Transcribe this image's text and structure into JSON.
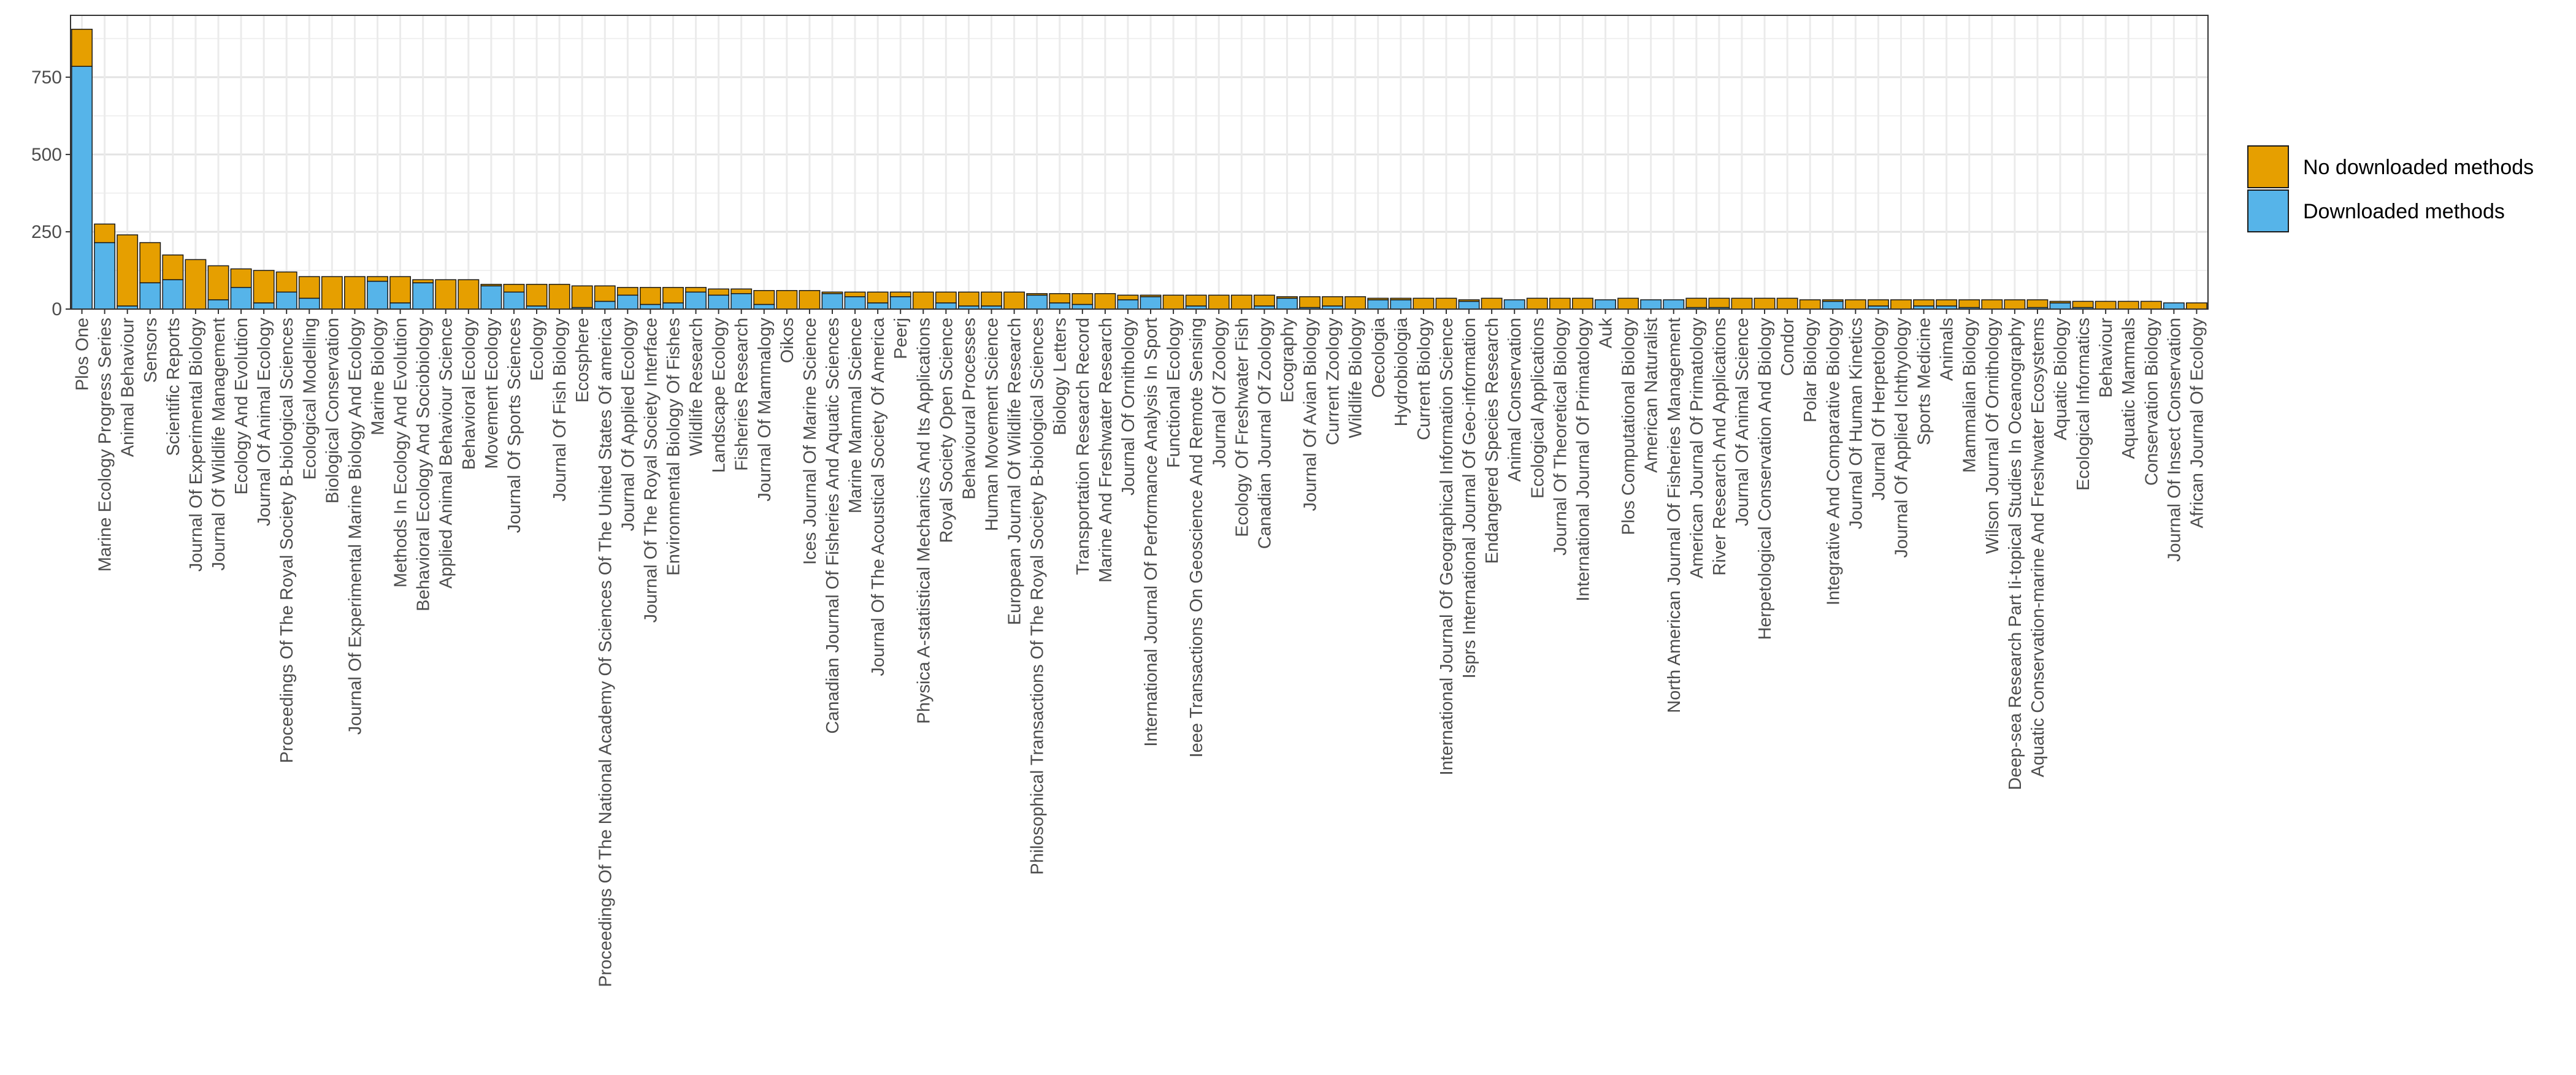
{
  "chart_data": {
    "type": "bar",
    "stacked": true,
    "grid": true,
    "legend_position": "right",
    "ylim": [
      0,
      950
    ],
    "y_ticks": [
      0,
      250,
      500,
      750
    ],
    "title": "",
    "xlabel": "",
    "ylabel": "",
    "categories": [
      "Plos One",
      "Marine Ecology Progress Series",
      "Animal Behaviour",
      "Sensors",
      "Scientific Reports",
      "Journal Of Experimental Biology",
      "Journal Of Wildlife Management",
      "Ecology And Evolution",
      "Journal Of Animal Ecology",
      "Proceedings Of The Royal Society B-biological Sciences",
      "Ecological Modelling",
      "Biological Conservation",
      "Journal Of Experimental Marine Biology And Ecology",
      "Marine Biology",
      "Methods In Ecology And Evolution",
      "Behavioral Ecology And Sociobiology",
      "Applied Animal Behaviour Science",
      "Behavioral Ecology",
      "Movement Ecology",
      "Journal Of Sports Sciences",
      "Ecology",
      "Journal Of Fish Biology",
      "Ecosphere",
      "Proceedings Of The National Academy Of Sciences Of The United States Of america",
      "Journal Of Applied Ecology",
      "Journal Of The Royal Society Interface",
      "Environmental Biology Of Fishes",
      "Wildlife Research",
      "Landscape Ecology",
      "Fisheries Research",
      "Journal Of Mammalogy",
      "Oikos",
      "Ices Journal Of Marine Science",
      "Canadian Journal Of Fisheries And Aquatic Sciences",
      "Marine Mammal Science",
      "Journal Of The Acoustical Society Of America",
      "Peerj",
      "Physica A-statistical Mechanics And Its Applications",
      "Royal Society Open Science",
      "Behavioural Processes",
      "Human Movement Science",
      "European Journal Of Wildlife Research",
      "Philosophical Transactions Of The Royal Society B-biological Sciences",
      "Biology Letters",
      "Transportation Research Record",
      "Marine And Freshwater Research",
      "Journal Of Ornithology",
      "International Journal Of Performance Analysis In Sport",
      "Functional Ecology",
      "Ieee Transactions On Geoscience And Remote Sensing",
      "Journal Of Zoology",
      "Ecology Of Freshwater Fish",
      "Canadian Journal Of Zoology",
      "Ecography",
      "Journal Of Avian Biology",
      "Current Zoology",
      "Wildlife Biology",
      "Oecologia",
      "Hydrobiologia",
      "Current Biology",
      "International Journal Of Geographical Information Science",
      "Isprs International Journal Of Geo-information",
      "Endangered Species Research",
      "Animal Conservation",
      "Ecological Applications",
      "Journal Of Theoretical Biology",
      "International Journal Of Primatology",
      "Auk",
      "Plos Computational Biology",
      "American Naturalist",
      "North American Journal Of Fisheries Management",
      "American Journal Of Primatology",
      "River Research And Applications",
      "Journal Of Animal Science",
      "Herpetological Conservation And Biology",
      "Condor",
      "Polar Biology",
      "Integrative And Comparative Biology",
      "Journal Of Human Kinetics",
      "Journal Of Herpetology",
      "Journal Of Applied Ichthyology",
      "Sports Medicine",
      "Animals",
      "Mammalian Biology",
      "Wilson Journal Of Ornithology",
      "Deep-sea Research Part Ii-topical Studies In Oceanography",
      "Aquatic Conservation-marine And Freshwater Ecosystems",
      "Aquatic Biology",
      "Ecological Informatics",
      "Behaviour",
      "Aquatic Mammals",
      "Conservation Biology",
      "Journal Of Insect Conservation",
      "African Journal Of Ecology"
    ],
    "series": [
      {
        "name": "Downloaded methods",
        "color": "#56B4E9",
        "values": [
          785,
          215,
          10,
          85,
          95,
          0,
          30,
          70,
          20,
          55,
          35,
          0,
          0,
          90,
          20,
          85,
          0,
          0,
          75,
          55,
          10,
          0,
          5,
          25,
          45,
          15,
          20,
          55,
          45,
          50,
          15,
          0,
          0,
          50,
          40,
          20,
          40,
          0,
          20,
          10,
          10,
          0,
          45,
          20,
          15,
          0,
          30,
          40,
          0,
          10,
          0,
          0,
          10,
          35,
          5,
          10,
          0,
          30,
          30,
          0,
          0,
          25,
          0,
          30,
          0,
          0,
          0,
          30,
          0,
          30,
          30,
          5,
          5,
          0,
          0,
          0,
          0,
          25,
          0,
          10,
          0,
          10,
          10,
          5,
          0,
          0,
          5,
          20,
          5,
          0,
          0,
          0,
          20,
          0
        ]
      },
      {
        "name": "No downloaded methods",
        "color": "#E69F00",
        "values": [
          120,
          60,
          230,
          130,
          80,
          160,
          110,
          60,
          105,
          65,
          70,
          105,
          105,
          15,
          85,
          10,
          95,
          95,
          5,
          25,
          70,
          80,
          70,
          50,
          25,
          55,
          50,
          15,
          20,
          15,
          45,
          60,
          60,
          5,
          15,
          35,
          15,
          55,
          35,
          45,
          45,
          55,
          5,
          30,
          35,
          50,
          15,
          5,
          45,
          35,
          45,
          45,
          35,
          5,
          35,
          30,
          40,
          5,
          5,
          35,
          35,
          5,
          35,
          0,
          35,
          35,
          35,
          0,
          35,
          0,
          0,
          30,
          30,
          35,
          35,
          35,
          30,
          5,
          30,
          20,
          30,
          20,
          20,
          25,
          30,
          30,
          25,
          5,
          20,
          25,
          25,
          25,
          0,
          20
        ]
      }
    ],
    "legend": [
      {
        "label": "No downloaded methods",
        "color": "#E69F00"
      },
      {
        "label": "Downloaded methods",
        "color": "#56B4E9"
      }
    ]
  }
}
